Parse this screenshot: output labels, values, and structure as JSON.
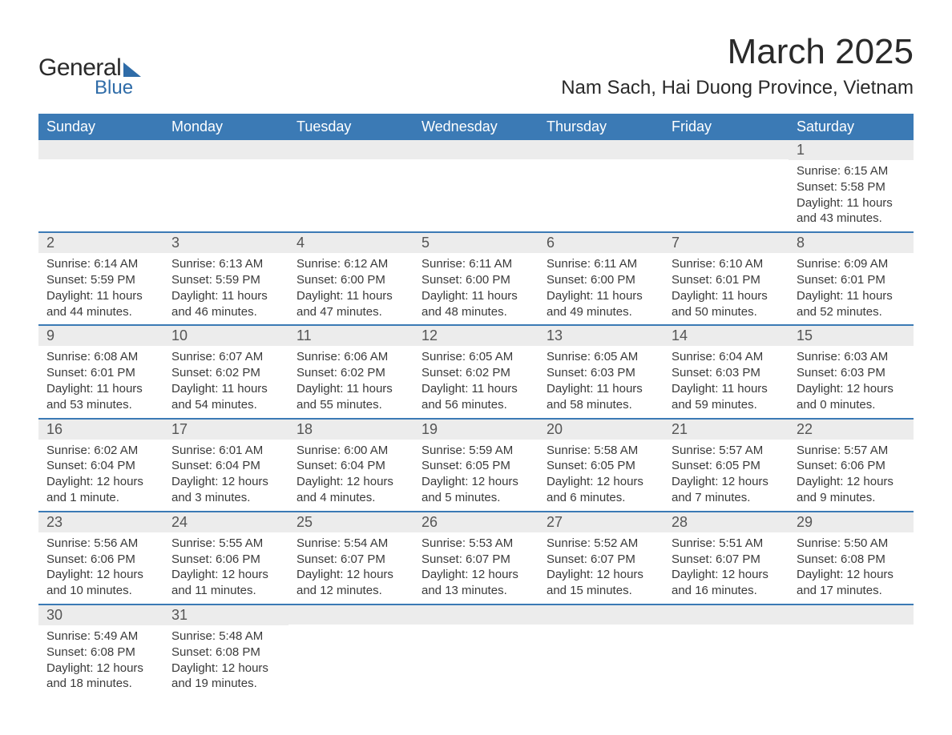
{
  "brand": {
    "general": "General",
    "blue": "Blue"
  },
  "title": "March 2025",
  "location": "Nam Sach, Hai Duong Province, Vietnam",
  "colors": {
    "header_bg": "#3b7ab5",
    "header_text": "#ffffff",
    "daynum_bg": "#ececec",
    "daynum_text": "#555555",
    "body_text": "#3a3a3a",
    "week_divider": "#3b7ab5",
    "logo_accent": "#2f6ca8"
  },
  "days_of_week": [
    "Sunday",
    "Monday",
    "Tuesday",
    "Wednesday",
    "Thursday",
    "Friday",
    "Saturday"
  ],
  "weeks": [
    [
      {
        "empty": true
      },
      {
        "empty": true
      },
      {
        "empty": true
      },
      {
        "empty": true
      },
      {
        "empty": true
      },
      {
        "empty": true
      },
      {
        "num": "1",
        "sunrise": "Sunrise: 6:15 AM",
        "sunset": "Sunset: 5:58 PM",
        "daylight": "Daylight: 11 hours and 43 minutes."
      }
    ],
    [
      {
        "num": "2",
        "sunrise": "Sunrise: 6:14 AM",
        "sunset": "Sunset: 5:59 PM",
        "daylight": "Daylight: 11 hours and 44 minutes."
      },
      {
        "num": "3",
        "sunrise": "Sunrise: 6:13 AM",
        "sunset": "Sunset: 5:59 PM",
        "daylight": "Daylight: 11 hours and 46 minutes."
      },
      {
        "num": "4",
        "sunrise": "Sunrise: 6:12 AM",
        "sunset": "Sunset: 6:00 PM",
        "daylight": "Daylight: 11 hours and 47 minutes."
      },
      {
        "num": "5",
        "sunrise": "Sunrise: 6:11 AM",
        "sunset": "Sunset: 6:00 PM",
        "daylight": "Daylight: 11 hours and 48 minutes."
      },
      {
        "num": "6",
        "sunrise": "Sunrise: 6:11 AM",
        "sunset": "Sunset: 6:00 PM",
        "daylight": "Daylight: 11 hours and 49 minutes."
      },
      {
        "num": "7",
        "sunrise": "Sunrise: 6:10 AM",
        "sunset": "Sunset: 6:01 PM",
        "daylight": "Daylight: 11 hours and 50 minutes."
      },
      {
        "num": "8",
        "sunrise": "Sunrise: 6:09 AM",
        "sunset": "Sunset: 6:01 PM",
        "daylight": "Daylight: 11 hours and 52 minutes."
      }
    ],
    [
      {
        "num": "9",
        "sunrise": "Sunrise: 6:08 AM",
        "sunset": "Sunset: 6:01 PM",
        "daylight": "Daylight: 11 hours and 53 minutes."
      },
      {
        "num": "10",
        "sunrise": "Sunrise: 6:07 AM",
        "sunset": "Sunset: 6:02 PM",
        "daylight": "Daylight: 11 hours and 54 minutes."
      },
      {
        "num": "11",
        "sunrise": "Sunrise: 6:06 AM",
        "sunset": "Sunset: 6:02 PM",
        "daylight": "Daylight: 11 hours and 55 minutes."
      },
      {
        "num": "12",
        "sunrise": "Sunrise: 6:05 AM",
        "sunset": "Sunset: 6:02 PM",
        "daylight": "Daylight: 11 hours and 56 minutes."
      },
      {
        "num": "13",
        "sunrise": "Sunrise: 6:05 AM",
        "sunset": "Sunset: 6:03 PM",
        "daylight": "Daylight: 11 hours and 58 minutes."
      },
      {
        "num": "14",
        "sunrise": "Sunrise: 6:04 AM",
        "sunset": "Sunset: 6:03 PM",
        "daylight": "Daylight: 11 hours and 59 minutes."
      },
      {
        "num": "15",
        "sunrise": "Sunrise: 6:03 AM",
        "sunset": "Sunset: 6:03 PM",
        "daylight": "Daylight: 12 hours and 0 minutes."
      }
    ],
    [
      {
        "num": "16",
        "sunrise": "Sunrise: 6:02 AM",
        "sunset": "Sunset: 6:04 PM",
        "daylight": "Daylight: 12 hours and 1 minute."
      },
      {
        "num": "17",
        "sunrise": "Sunrise: 6:01 AM",
        "sunset": "Sunset: 6:04 PM",
        "daylight": "Daylight: 12 hours and 3 minutes."
      },
      {
        "num": "18",
        "sunrise": "Sunrise: 6:00 AM",
        "sunset": "Sunset: 6:04 PM",
        "daylight": "Daylight: 12 hours and 4 minutes."
      },
      {
        "num": "19",
        "sunrise": "Sunrise: 5:59 AM",
        "sunset": "Sunset: 6:05 PM",
        "daylight": "Daylight: 12 hours and 5 minutes."
      },
      {
        "num": "20",
        "sunrise": "Sunrise: 5:58 AM",
        "sunset": "Sunset: 6:05 PM",
        "daylight": "Daylight: 12 hours and 6 minutes."
      },
      {
        "num": "21",
        "sunrise": "Sunrise: 5:57 AM",
        "sunset": "Sunset: 6:05 PM",
        "daylight": "Daylight: 12 hours and 7 minutes."
      },
      {
        "num": "22",
        "sunrise": "Sunrise: 5:57 AM",
        "sunset": "Sunset: 6:06 PM",
        "daylight": "Daylight: 12 hours and 9 minutes."
      }
    ],
    [
      {
        "num": "23",
        "sunrise": "Sunrise: 5:56 AM",
        "sunset": "Sunset: 6:06 PM",
        "daylight": "Daylight: 12 hours and 10 minutes."
      },
      {
        "num": "24",
        "sunrise": "Sunrise: 5:55 AM",
        "sunset": "Sunset: 6:06 PM",
        "daylight": "Daylight: 12 hours and 11 minutes."
      },
      {
        "num": "25",
        "sunrise": "Sunrise: 5:54 AM",
        "sunset": "Sunset: 6:07 PM",
        "daylight": "Daylight: 12 hours and 12 minutes."
      },
      {
        "num": "26",
        "sunrise": "Sunrise: 5:53 AM",
        "sunset": "Sunset: 6:07 PM",
        "daylight": "Daylight: 12 hours and 13 minutes."
      },
      {
        "num": "27",
        "sunrise": "Sunrise: 5:52 AM",
        "sunset": "Sunset: 6:07 PM",
        "daylight": "Daylight: 12 hours and 15 minutes."
      },
      {
        "num": "28",
        "sunrise": "Sunrise: 5:51 AM",
        "sunset": "Sunset: 6:07 PM",
        "daylight": "Daylight: 12 hours and 16 minutes."
      },
      {
        "num": "29",
        "sunrise": "Sunrise: 5:50 AM",
        "sunset": "Sunset: 6:08 PM",
        "daylight": "Daylight: 12 hours and 17 minutes."
      }
    ],
    [
      {
        "num": "30",
        "sunrise": "Sunrise: 5:49 AM",
        "sunset": "Sunset: 6:08 PM",
        "daylight": "Daylight: 12 hours and 18 minutes."
      },
      {
        "num": "31",
        "sunrise": "Sunrise: 5:48 AM",
        "sunset": "Sunset: 6:08 PM",
        "daylight": "Daylight: 12 hours and 19 minutes."
      },
      {
        "empty": true
      },
      {
        "empty": true
      },
      {
        "empty": true
      },
      {
        "empty": true
      },
      {
        "empty": true
      }
    ]
  ]
}
